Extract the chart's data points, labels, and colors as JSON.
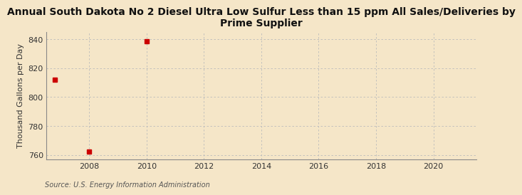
{
  "title": "Annual South Dakota No 2 Diesel Ultra Low Sulfur Less than 15 ppm All Sales/Deliveries by\nPrime Supplier",
  "ylabel": "Thousand Gallons per Day",
  "source_text": "Source: U.S. Energy Information Administration",
  "background_color": "#f5e6c8",
  "x_data": [
    2006.8,
    2008,
    2010
  ],
  "y_data": [
    812.0,
    762.5,
    838.5
  ],
  "marker_color": "#cc0000",
  "marker_size": 4,
  "xlim": [
    2006.5,
    2021.5
  ],
  "ylim": [
    757,
    845
  ],
  "yticks": [
    760,
    780,
    800,
    820,
    840
  ],
  "xticks": [
    2008,
    2010,
    2012,
    2014,
    2016,
    2018,
    2020
  ],
  "grid_color": "#bbbbbb",
  "title_fontsize": 10,
  "label_fontsize": 8,
  "tick_fontsize": 8,
  "source_fontsize": 7
}
